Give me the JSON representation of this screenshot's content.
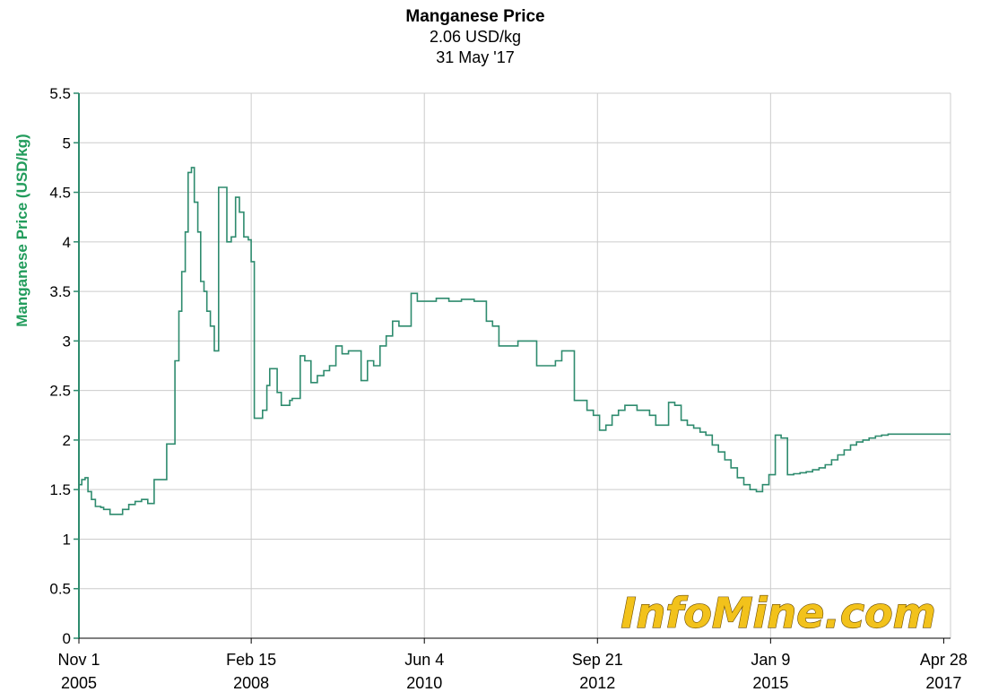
{
  "colors": {
    "series": "#2e8b6e",
    "ylabel": "#229c5c",
    "axis": "#2e8b6e",
    "grid": "#cccccc",
    "watermark": "#f2c21b"
  },
  "watermark": "InfoMine.com",
  "chart_data": {
    "type": "line",
    "title": "Manganese Price",
    "subtitle_lines": [
      "2.06 USD/kg",
      "31 May '17"
    ],
    "ylabel": "Manganese Price (USD/kg)",
    "xlabel": "",
    "ylim": [
      0,
      5.5
    ],
    "yticks": [
      "0",
      "0.5",
      "1",
      "1.5",
      "2",
      "2.5",
      "3",
      "3.5",
      "4",
      "4.5",
      "5",
      "5.5"
    ],
    "xlim": [
      "2005-11-01",
      "2017-05-31"
    ],
    "xticks": [
      {
        "date": "2005-11-01",
        "line1": "Nov 1",
        "line2": "2005"
      },
      {
        "date": "2008-02-15",
        "line1": "Feb 15",
        "line2": "2008"
      },
      {
        "date": "2010-06-04",
        "line1": "Jun 4",
        "line2": "2010"
      },
      {
        "date": "2012-09-21",
        "line1": "Sep 21",
        "line2": "2012"
      },
      {
        "date": "2015-01-09",
        "line1": "Jan 9",
        "line2": "2015"
      },
      {
        "date": "2017-04-28",
        "line1": "Apr 28",
        "line2": "2017"
      }
    ],
    "grid": true,
    "legend": "none",
    "series": [
      {
        "name": "",
        "x": [
          "2005-11-01",
          "2005-11-15",
          "2005-12-01",
          "2005-12-15",
          "2006-01-01",
          "2006-01-20",
          "2006-02-15",
          "2006-03-01",
          "2006-04-01",
          "2006-05-01",
          "2006-06-01",
          "2006-07-01",
          "2006-08-01",
          "2006-09-01",
          "2006-10-01",
          "2006-11-01",
          "2006-12-01",
          "2007-01-01",
          "2007-01-20",
          "2007-02-10",
          "2007-03-01",
          "2007-03-15",
          "2007-04-01",
          "2007-04-15",
          "2007-05-01",
          "2007-05-15",
          "2007-06-01",
          "2007-06-15",
          "2007-07-01",
          "2007-07-15",
          "2007-08-01",
          "2007-08-20",
          "2007-09-10",
          "2007-10-01",
          "2007-10-20",
          "2007-11-10",
          "2007-12-01",
          "2007-12-20",
          "2008-01-10",
          "2008-02-01",
          "2008-02-15",
          "2008-03-01",
          "2008-03-20",
          "2008-04-10",
          "2008-05-01",
          "2008-05-15",
          "2008-06-01",
          "2008-06-20",
          "2008-07-10",
          "2008-08-01",
          "2008-08-20",
          "2008-09-01",
          "2008-09-20",
          "2008-10-10",
          "2008-11-01",
          "2008-12-01",
          "2009-01-01",
          "2009-02-01",
          "2009-03-01",
          "2009-04-01",
          "2009-05-01",
          "2009-06-01",
          "2009-07-01",
          "2009-08-01",
          "2009-09-01",
          "2009-10-01",
          "2009-11-01",
          "2009-12-01",
          "2010-01-01",
          "2010-02-01",
          "2010-03-01",
          "2010-04-01",
          "2010-05-01",
          "2010-06-01",
          "2010-07-01",
          "2010-08-01",
          "2010-09-01",
          "2010-10-01",
          "2010-11-01",
          "2010-12-01",
          "2011-01-01",
          "2011-02-01",
          "2011-03-01",
          "2011-04-01",
          "2011-05-01",
          "2011-06-01",
          "2011-09-01",
          "2011-12-01",
          "2012-03-01",
          "2012-04-01",
          "2012-05-01",
          "2012-06-01",
          "2012-07-01",
          "2012-08-01",
          "2012-09-01",
          "2012-10-01",
          "2012-11-01",
          "2012-12-01",
          "2013-01-01",
          "2013-02-01",
          "2013-04-01",
          "2013-06-01",
          "2013-07-01",
          "2013-08-01",
          "2013-09-01",
          "2013-10-01",
          "2013-11-01",
          "2013-12-01",
          "2014-01-01",
          "2014-02-01",
          "2014-03-01",
          "2014-04-01",
          "2014-05-01",
          "2014-06-01",
          "2014-07-01",
          "2014-08-01",
          "2014-09-01",
          "2014-10-01",
          "2014-11-01",
          "2014-12-01",
          "2015-01-01",
          "2015-02-01",
          "2015-03-01",
          "2015-04-01",
          "2015-05-01",
          "2015-06-01",
          "2015-07-01",
          "2015-08-01",
          "2015-09-01",
          "2015-10-01",
          "2015-11-01",
          "2015-12-01",
          "2016-01-01",
          "2016-02-01",
          "2016-03-01",
          "2016-04-01",
          "2016-05-01",
          "2016-06-01",
          "2016-07-01",
          "2016-08-01",
          "2016-09-01",
          "2016-10-01",
          "2016-11-01",
          "2016-12-01",
          "2017-01-01",
          "2017-02-01",
          "2017-03-01",
          "2017-04-01",
          "2017-05-01",
          "2017-05-31"
        ],
        "values": [
          1.55,
          1.6,
          1.62,
          1.48,
          1.4,
          1.33,
          1.32,
          1.3,
          1.25,
          1.25,
          1.3,
          1.35,
          1.38,
          1.4,
          1.36,
          1.6,
          1.6,
          1.96,
          1.96,
          2.8,
          3.3,
          3.7,
          4.1,
          4.7,
          4.75,
          4.4,
          4.1,
          3.6,
          3.5,
          3.3,
          3.15,
          2.9,
          4.55,
          4.55,
          4.0,
          4.05,
          4.45,
          4.3,
          4.05,
          4.02,
          3.8,
          2.22,
          2.22,
          2.3,
          2.55,
          2.72,
          2.72,
          2.48,
          2.35,
          2.35,
          2.4,
          2.42,
          2.42,
          2.85,
          2.8,
          2.58,
          2.65,
          2.7,
          2.75,
          2.95,
          2.87,
          2.9,
          2.9,
          2.6,
          2.8,
          2.75,
          2.95,
          3.05,
          3.2,
          3.15,
          3.15,
          3.48,
          3.4,
          3.4,
          3.4,
          3.43,
          3.43,
          3.4,
          3.4,
          3.42,
          3.42,
          3.4,
          3.4,
          3.2,
          3.15,
          2.95,
          3.0,
          2.75,
          2.8,
          2.9,
          2.9,
          2.4,
          2.4,
          2.3,
          2.25,
          2.1,
          2.15,
          2.25,
          2.3,
          2.35,
          2.3,
          2.25,
          2.15,
          2.15,
          2.38,
          2.35,
          2.2,
          2.15,
          2.12,
          2.08,
          2.05,
          1.95,
          1.88,
          1.8,
          1.72,
          1.62,
          1.55,
          1.5,
          1.48,
          1.55,
          1.65,
          2.05,
          2.02,
          1.65,
          1.66,
          1.67,
          1.68,
          1.7,
          1.72,
          1.75,
          1.8,
          1.85,
          1.9,
          1.95,
          1.98,
          2.0,
          2.02,
          2.04,
          2.05,
          2.06,
          2.06,
          2.06,
          2.06,
          2.06,
          2.06,
          2.06,
          2.06,
          2.06,
          2.06,
          2.06
        ]
      }
    ]
  }
}
